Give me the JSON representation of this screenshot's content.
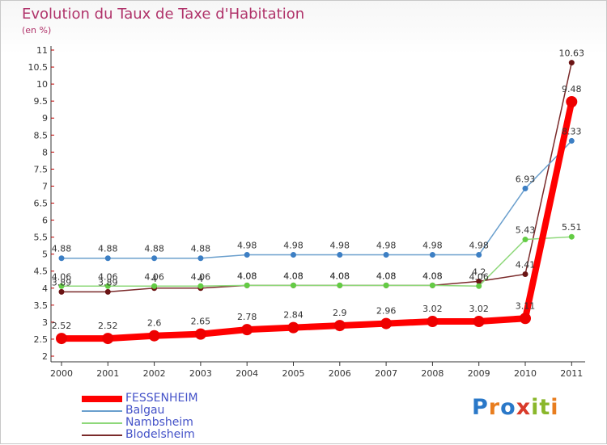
{
  "title": "Evolution du Taux de Taxe d'Habitation",
  "subtitle": "(en %)",
  "logo": {
    "text": "Proxiti",
    "letters": [
      "P",
      "r",
      "o",
      "x",
      "i",
      "t",
      "i"
    ],
    "colors": [
      "#2a78c8",
      "#e87d1e",
      "#2a78c8",
      "#d93a2a",
      "#8ab72b",
      "#8ab72b",
      "#e87d1e"
    ]
  },
  "colors": {
    "title": "#b0336a",
    "axis": "#333333",
    "grid_tick": "#c00000",
    "legend_text": "#4452c8"
  },
  "chart_data": {
    "type": "line",
    "title": "Evolution du Taux de Taxe d'Habitation",
    "ylabel": "(en %)",
    "xlabel": "",
    "x": [
      "2000",
      "2001",
      "2002",
      "2003",
      "2004",
      "2005",
      "2006",
      "2007",
      "2008",
      "2009",
      "2010",
      "2011"
    ],
    "ylim": [
      2,
      11
    ],
    "yticks": [
      "2",
      "2.5",
      "3",
      "3.5",
      "4",
      "4.5",
      "5",
      "5.5",
      "6",
      "6.5",
      "7",
      "7.5",
      "8",
      "8.5",
      "9",
      "9.5",
      "10",
      "10.5",
      "11"
    ],
    "legend_position": "bottom-left",
    "series": [
      {
        "name": "FESSENHEIM",
        "color": "#ff0000",
        "point_color": "#ee0000",
        "width": 8,
        "marker": 6.5,
        "values": [
          2.52,
          2.52,
          2.6,
          2.65,
          2.78,
          2.84,
          2.9,
          2.96,
          3.02,
          3.02,
          3.11,
          9.48
        ],
        "labels": [
          "2.52",
          "2.52",
          "2.6",
          "2.65",
          "2.78",
          "2.84",
          "2.9",
          "2.96",
          "3.02",
          "3.02",
          "3.11",
          "9.48"
        ]
      },
      {
        "name": "Balgau",
        "color": "#6a9fcd",
        "point_color": "#3d7fc4",
        "width": 1.5,
        "marker": 3,
        "values": [
          4.88,
          4.88,
          4.88,
          4.88,
          4.98,
          4.98,
          4.98,
          4.98,
          4.98,
          4.98,
          6.93,
          8.33
        ],
        "labels": [
          "4.88",
          "4.88",
          "4.88",
          "4.88",
          "4.98",
          "4.98",
          "4.98",
          "4.98",
          "4.98",
          "4.98",
          "6.93",
          "8.33"
        ]
      },
      {
        "name": "Nambsheim",
        "color": "#8ed87a",
        "point_color": "#63cc44",
        "width": 1.5,
        "marker": 3,
        "values": [
          4.06,
          4.06,
          4.06,
          4.06,
          4.08,
          4.08,
          4.08,
          4.08,
          4.08,
          4.06,
          5.43,
          5.51
        ],
        "labels": [
          "4.06",
          "4.06",
          "4.06",
          "4.06",
          "4.08",
          "4.08",
          "4.08",
          "4.08",
          "4.08",
          "4.06",
          "5.43",
          "5.51"
        ]
      },
      {
        "name": "Blodelsheim",
        "color": "#7a2a2a",
        "point_color": "#6b1414",
        "width": 1.5,
        "marker": 3,
        "values": [
          3.89,
          3.89,
          4,
          4,
          4.08,
          4.08,
          4.08,
          4.08,
          4.08,
          4.2,
          4.41,
          10.63
        ],
        "labels": [
          "3.89",
          "3.89",
          "4",
          "4",
          "4.08",
          "4.08",
          "4.08",
          "4.08",
          "4.08",
          "4.2",
          "4.41",
          "10.63"
        ]
      }
    ]
  }
}
